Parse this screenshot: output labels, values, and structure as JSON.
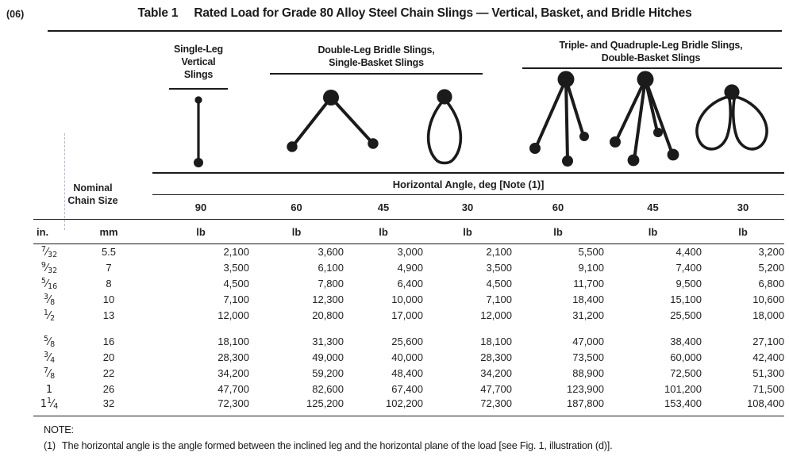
{
  "tag": "(06)",
  "title": {
    "label": "Table 1",
    "text": "Rated Load for Grade 80 Alloy Steel Chain Slings — Vertical, Basket, and Bridle Hitches"
  },
  "column_groups": {
    "single": "Single-Leg\nVertical\nSlings",
    "double": "Double-Leg Bridle Slings,\nSingle-Basket Slings",
    "triple": "Triple- and Quadruple-Leg Bridle Slings,\nDouble-Basket Slings"
  },
  "figures": [
    "single-leg-sling",
    "double-leg-bridle-sling",
    "single-basket-sling",
    "triple-leg-bridle-sling",
    "quadruple-leg-bridle-sling",
    "double-basket-sling"
  ],
  "table": {
    "nominal_header": "Nominal\nChain Size",
    "angle_header": "Horizontal Angle, deg [Note (1)]",
    "angles": [
      "90",
      "60",
      "45",
      "30",
      "60",
      "45",
      "30"
    ],
    "unit_row": [
      "in.",
      "mm",
      "lb",
      "lb",
      "lb",
      "lb",
      "lb",
      "lb",
      "lb"
    ],
    "row_blocks": [
      [
        {
          "in": "7/32",
          "mm": "5.5",
          "loads": [
            "2,100",
            "3,600",
            "3,000",
            "2,100",
            "5,500",
            "4,400",
            "3,200"
          ]
        },
        {
          "in": "9/32",
          "mm": "7",
          "loads": [
            "3,500",
            "6,100",
            "4,900",
            "3,500",
            "9,100",
            "7,400",
            "5,200"
          ]
        },
        {
          "in": "5/16",
          "mm": "8",
          "loads": [
            "4,500",
            "7,800",
            "6,400",
            "4,500",
            "11,700",
            "9,500",
            "6,800"
          ]
        },
        {
          "in": "3/8",
          "mm": "10",
          "loads": [
            "7,100",
            "12,300",
            "10,000",
            "7,100",
            "18,400",
            "15,100",
            "10,600"
          ]
        },
        {
          "in": "1/2",
          "mm": "13",
          "loads": [
            "12,000",
            "20,800",
            "17,000",
            "12,000",
            "31,200",
            "25,500",
            "18,000"
          ]
        }
      ],
      [
        {
          "in": "5/8",
          "mm": "16",
          "loads": [
            "18,100",
            "31,300",
            "25,600",
            "18,100",
            "47,000",
            "38,400",
            "27,100"
          ]
        },
        {
          "in": "3/4",
          "mm": "20",
          "loads": [
            "28,300",
            "49,000",
            "40,000",
            "28,300",
            "73,500",
            "60,000",
            "42,400"
          ]
        },
        {
          "in": "7/8",
          "mm": "22",
          "loads": [
            "34,200",
            "59,200",
            "48,400",
            "34,200",
            "88,900",
            "72,500",
            "51,300"
          ]
        },
        {
          "in": "1",
          "mm": "26",
          "loads": [
            "47,700",
            "82,600",
            "67,400",
            "47,700",
            "123,900",
            "101,200",
            "71,500"
          ]
        },
        {
          "in": "1 1/4",
          "mm": "32",
          "loads": [
            "72,300",
            "125,200",
            "102,200",
            "72,300",
            "187,800",
            "153,400",
            "108,400"
          ]
        }
      ]
    ]
  },
  "note": {
    "label": "NOTE:",
    "items": [
      {
        "num": "(1)",
        "text": "The horizontal angle is the angle formed between the inclined leg and the horizontal plane of the load [see Fig. 1, illustration (d)]."
      }
    ]
  },
  "colors": {
    "ink": "#1b1b1b",
    "paper": "#ffffff"
  }
}
